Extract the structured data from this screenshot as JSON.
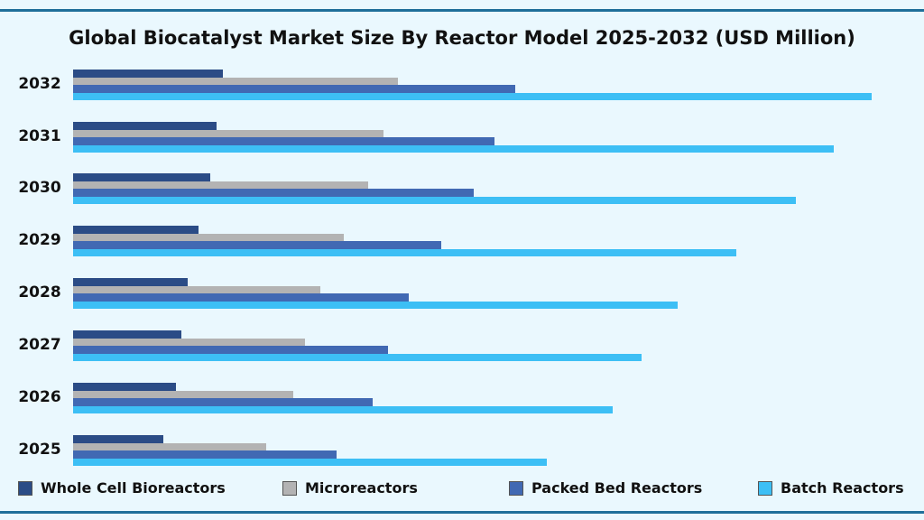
{
  "title": "Global Biocatalyst Market Size By Reactor Model 2025-2032 (USD Million)",
  "colors": {
    "background": "#eaf8fe",
    "rule": "#1f6f9a",
    "Whole Cell Bioreactors": "#2b4c86",
    "Microreactors": "#b3b3b3",
    "Packed Bed Reactors": "#4169b3",
    "Batch Reactors": "#3dbff5"
  },
  "legend": [
    {
      "label": "Whole Cell Bioreactors",
      "color": "#2b4c86"
    },
    {
      "label": "Microreactors",
      "color": "#b3b3b3"
    },
    {
      "label": "Packed Bed Reactors",
      "color": "#4169b3"
    },
    {
      "label": "Batch Reactors",
      "color": "#3dbff5"
    }
  ],
  "chart_data": {
    "type": "bar",
    "orientation": "horizontal",
    "title": "Global Biocatalyst Market Size By Reactor Model 2025-2032 (USD Million)",
    "xlabel": "",
    "ylabel": "",
    "categories": [
      "2032",
      "2031",
      "2030",
      "2029",
      "2028",
      "2027",
      "2026",
      "2025"
    ],
    "series": [
      {
        "name": "Whole Cell Bioreactors",
        "values": [
          166,
          159,
          152,
          139,
          127,
          120,
          114,
          100
        ]
      },
      {
        "name": "Microreactors",
        "values": [
          360,
          344,
          327,
          300,
          274,
          257,
          244,
          214
        ]
      },
      {
        "name": "Packed Bed Reactors",
        "values": [
          490,
          467,
          444,
          408,
          372,
          349,
          332,
          292
        ]
      },
      {
        "name": "Batch Reactors",
        "values": [
          885,
          843,
          801,
          735,
          670,
          630,
          598,
          525
        ]
      }
    ],
    "units": "relative (no axis ticks shown; values estimated from bar lengths in px)",
    "grid": false,
    "legend_position": "bottom",
    "axis_labels_visible": false
  }
}
